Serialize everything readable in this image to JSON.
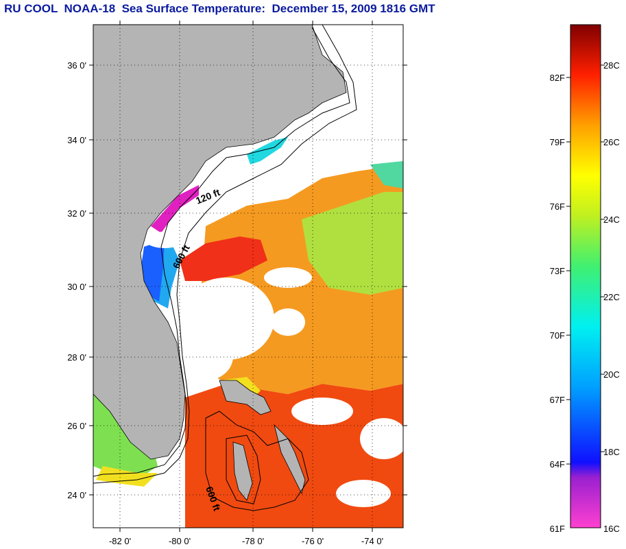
{
  "title": "RU COOL  NOAA-18  Sea Surface Temperature:  December 15, 2009 1816 GMT",
  "map": {
    "lat_labels": [
      "36 0'",
      "34 0'",
      "32 0'",
      "30 0'",
      "28 0'",
      "26 0'",
      "24 0'"
    ],
    "lon_labels": [
      "-82 0'",
      "-80 0'",
      "-78 0'",
      "-76 0'",
      "-74 0'"
    ],
    "contour_labels": [
      "120 ft",
      "600 ft",
      "600 ft"
    ],
    "colors": {
      "land": "#b4b4b4",
      "cloud": "#ffffff",
      "warm": "#f04a10",
      "orange": "#f59a20",
      "yellow": "#f2e020",
      "green": "#7ee050",
      "cyan": "#20d8e0",
      "blue": "#1a60ff",
      "magenta": "#e020c0"
    }
  },
  "colorbar": {
    "fahrenheit_labels": [
      "82F",
      "79F",
      "76F",
      "73F",
      "70F",
      "67F",
      "64F",
      "61F"
    ],
    "celsius_labels": [
      "28C",
      "26C",
      "24C",
      "22C",
      "20C",
      "18C",
      "16C"
    ]
  }
}
